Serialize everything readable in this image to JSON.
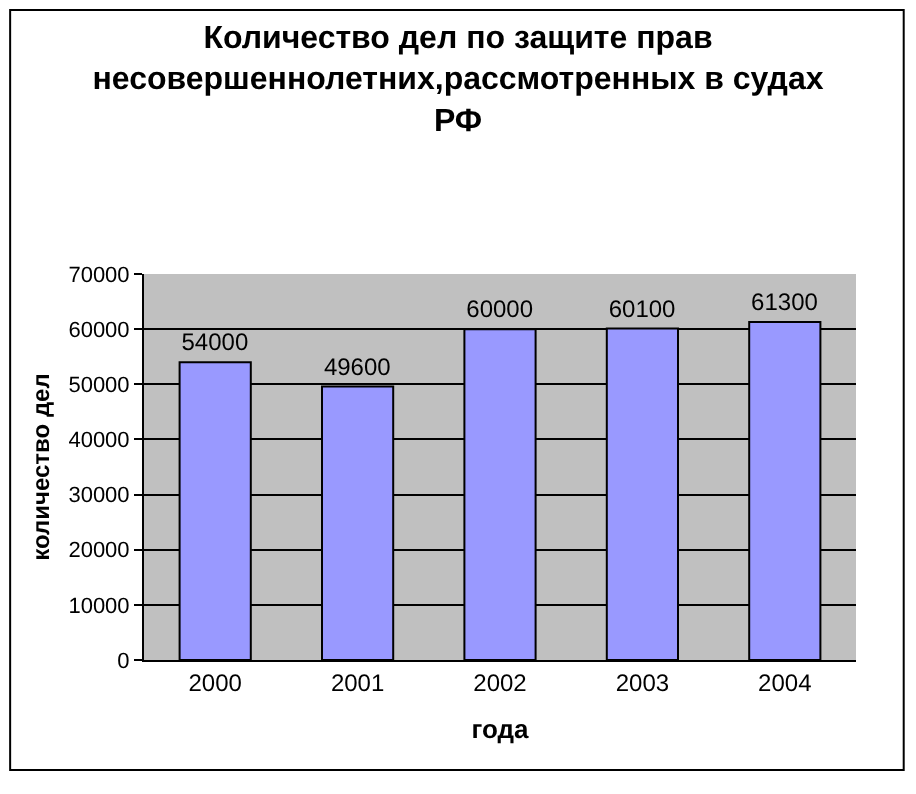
{
  "chart_data": {
    "type": "bar",
    "title": "Количество дел по защите прав несовершеннолетних,рассмотренных в судах РФ",
    "xlabel": "года",
    "ylabel": "количество дел",
    "categories": [
      "2000",
      "2001",
      "2002",
      "2003",
      "2004"
    ],
    "values": [
      54000,
      49600,
      60000,
      60100,
      61300
    ],
    "color": "#9999ff",
    "data_labels": true,
    "grid": "y",
    "legend": false,
    "ylim": [
      0,
      70000
    ],
    "yticks": [
      0,
      10000,
      20000,
      30000,
      40000,
      50000,
      60000,
      70000
    ]
  }
}
